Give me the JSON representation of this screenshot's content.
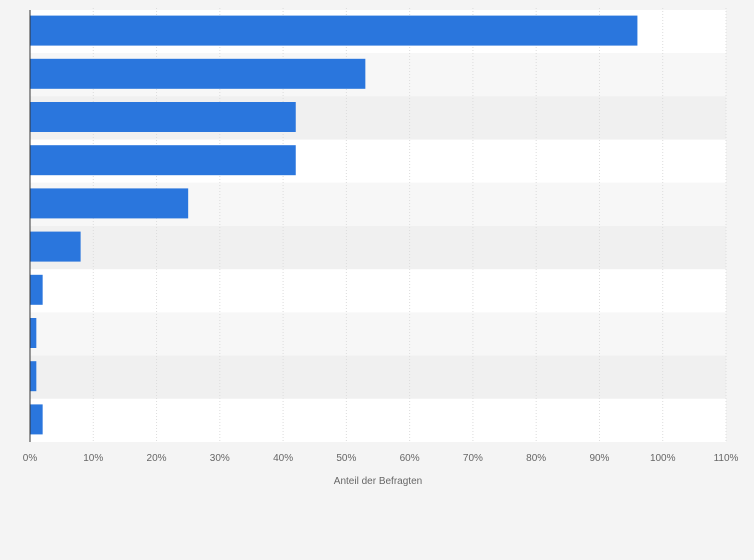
{
  "chart_data": {
    "type": "bar",
    "orientation": "horizontal",
    "categories": [
      "",
      "",
      "",
      "",
      "",
      "",
      "",
      "",
      "",
      ""
    ],
    "values": [
      96,
      53,
      42,
      42,
      25,
      8,
      2,
      1,
      1,
      2
    ],
    "value_unit": "%",
    "xlabel": "Anteil der Befragten",
    "ylabel": "",
    "xlim": [
      0,
      110
    ],
    "x_ticks": [
      "0%",
      "10%",
      "20%",
      "30%",
      "40%",
      "50%",
      "60%",
      "70%",
      "80%",
      "90%",
      "100%",
      "110%"
    ],
    "grid": true,
    "legend": "none",
    "bar_color": "#2a76dd",
    "band_colors": [
      "#ffffff",
      "#f7f7f7",
      "#f0f0f0"
    ]
  }
}
